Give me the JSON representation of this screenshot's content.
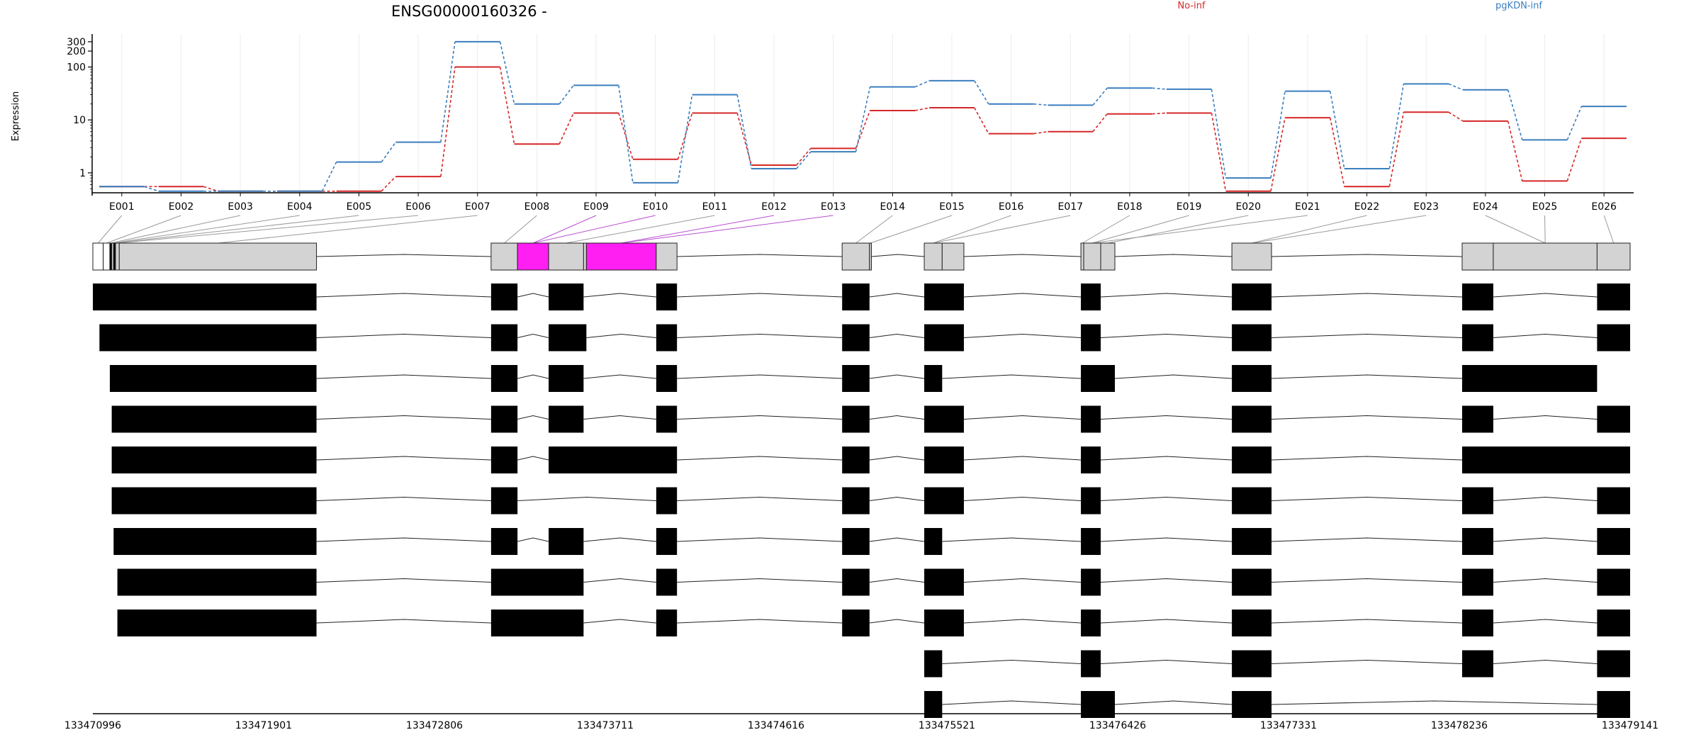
{
  "chart_data": {
    "type": "line",
    "title": "ENSG00000160326 -",
    "ylabel": "Expression",
    "yscale": "log",
    "y_ticks": [
      1,
      10,
      100,
      200,
      300
    ],
    "grid": true,
    "legend": [
      {
        "name": "No-inf",
        "color": "#d62728"
      },
      {
        "name": "pgKDN-inf",
        "color": "#3a7ebf"
      }
    ],
    "categories": [
      "E001",
      "E002",
      "E003",
      "E004",
      "E005",
      "E006",
      "E007",
      "E008",
      "E009",
      "E010",
      "E011",
      "E012",
      "E013",
      "E014",
      "E015",
      "E016",
      "E017",
      "E018",
      "E019",
      "E020",
      "E021",
      "E022",
      "E023",
      "E024",
      "E025",
      "E026"
    ],
    "series": [
      {
        "name": "No-inf",
        "color": "#d62728",
        "values": [
          0.55,
          0.55,
          0.45,
          0.45,
          0.45,
          0.85,
          100,
          3.5,
          13.5,
          1.8,
          13.5,
          1.4,
          2.9,
          15,
          17,
          5.5,
          6,
          13,
          13.5,
          0.45,
          11,
          0.55,
          14,
          9.5,
          0.7,
          4.5
        ]
      },
      {
        "name": "pgKDN-inf",
        "color": "#3a7ebf",
        "values": [
          0.55,
          0.45,
          0.45,
          0.45,
          1.6,
          3.8,
          300,
          20,
          45,
          0.65,
          30,
          1.2,
          2.5,
          42,
          55,
          20,
          19,
          40,
          38,
          0.8,
          35,
          1.2,
          48,
          37,
          4.2,
          18
        ]
      }
    ],
    "genomic_axis": {
      "ticks": [
        "133470996",
        "133471901",
        "133472806",
        "133473711",
        "133474616",
        "133475521",
        "133476426",
        "133477331",
        "133478236",
        "133479141"
      ],
      "start": 133470996,
      "end": 133479141
    },
    "exon_map": {
      "fill_color": "#d3d3d3",
      "highlight_color": "#ff1ff2",
      "exons": [
        {
          "id": "E001",
          "start": 133470996,
          "end": 133471051,
          "fill": "white"
        },
        {
          "id": "E002",
          "start": 133471051,
          "end": 133471086,
          "fill": "white"
        },
        {
          "id": "E003",
          "start": 133471086,
          "end": 133471096,
          "fill": "black"
        },
        {
          "id": "E004",
          "start": 133471096,
          "end": 133471106,
          "fill": "gray"
        },
        {
          "id": "E005",
          "start": 133471106,
          "end": 133471116,
          "fill": "black"
        },
        {
          "id": "E006",
          "start": 133471116,
          "end": 133471136,
          "fill": "gray"
        },
        {
          "id": "E007",
          "start": 133471136,
          "end": 133472181,
          "fill": "gray"
        },
        {
          "id": "E008",
          "start": 133473106,
          "end": 133473246,
          "fill": "gray"
        },
        {
          "id": "E009",
          "start": 133473246,
          "end": 133473411,
          "fill": "highlight"
        },
        {
          "id": "E010",
          "start": 133473411,
          "end": 133473596,
          "fill": "gray"
        },
        {
          "id": "E011",
          "start": 133473596,
          "end": 133473611,
          "fill": "gray"
        },
        {
          "id": "E012",
          "start": 133473611,
          "end": 133473981,
          "fill": "highlight"
        },
        {
          "id": "E013",
          "start": 133473981,
          "end": 133474091,
          "fill": "gray"
        },
        {
          "id": "E014",
          "start": 133474966,
          "end": 133475111,
          "fill": "gray"
        },
        {
          "id": "E015",
          "start": 133475111,
          "end": 133475121,
          "fill": "gray"
        },
        {
          "id": "E016",
          "start": 133475401,
          "end": 133475496,
          "fill": "gray"
        },
        {
          "id": "E017",
          "start": 133475496,
          "end": 133475611,
          "fill": "gray"
        },
        {
          "id": "E018",
          "start": 133476231,
          "end": 133476246,
          "fill": "gray"
        },
        {
          "id": "E019",
          "start": 133476246,
          "end": 133476336,
          "fill": "gray"
        },
        {
          "id": "E020",
          "start": 133476336,
          "end": 133476411,
          "fill": "gray"
        },
        {
          "id": "E021",
          "start": 133477031,
          "end": 133477241,
          "fill": "gray"
        },
        {
          "id": "E022",
          "start": 133478251,
          "end": 133478416,
          "fill": "gray"
        },
        {
          "id": "E023",
          "start": 133478416,
          "end": 133478966,
          "fill": "gray"
        },
        {
          "id": "E024",
          "start": 133478966,
          "end": 133479141,
          "fill": "gray"
        }
      ],
      "label_links": [
        [
          "E001",
          "E001"
        ],
        [
          "E002",
          "E002"
        ],
        [
          "E003",
          "E003"
        ],
        [
          "E004",
          "E004"
        ],
        [
          "E005",
          "E005"
        ],
        [
          "E006",
          "E006"
        ],
        [
          "E007",
          "E007"
        ],
        [
          "E008",
          "E008"
        ],
        [
          "E009",
          "E009"
        ],
        [
          "E010",
          "E009"
        ],
        [
          "E011",
          "E010"
        ],
        [
          "E012",
          "E012"
        ],
        [
          "E013",
          "E012"
        ],
        [
          "E014",
          "E014"
        ],
        [
          "E015",
          "E015"
        ],
        [
          "E016",
          "E016"
        ],
        [
          "E017",
          "E016"
        ],
        [
          "E018",
          "E018"
        ],
        [
          "E019",
          "E019"
        ],
        [
          "E020",
          "E020"
        ],
        [
          "E021",
          "E019"
        ],
        [
          "E022",
          "E021"
        ],
        [
          "E023",
          "E021"
        ],
        [
          "E024",
          "E023"
        ],
        [
          "E025",
          "E023"
        ],
        [
          "E026",
          "E024"
        ]
      ]
    },
    "transcripts": [
      [
        [
          133470996,
          133472181
        ],
        [
          133473106,
          133473246
        ],
        [
          133473411,
          133473596
        ],
        [
          133473981,
          133474091
        ],
        [
          133474966,
          133475111
        ],
        [
          133475401,
          133475611
        ],
        [
          133476231,
          133476336
        ],
        [
          133477031,
          133477241
        ],
        [
          133478251,
          133478416
        ],
        [
          133478966,
          133479141
        ]
      ],
      [
        [
          133471031,
          133472181
        ],
        [
          133473106,
          133473246
        ],
        [
          133473411,
          133473611
        ],
        [
          133473981,
          133474091
        ],
        [
          133474966,
          133475111
        ],
        [
          133475401,
          133475611
        ],
        [
          133476231,
          133476336
        ],
        [
          133477031,
          133477241
        ],
        [
          133478251,
          133478416
        ],
        [
          133478966,
          133479141
        ]
      ],
      [
        [
          133471086,
          133472181
        ],
        [
          133473106,
          133473246
        ],
        [
          133473411,
          133473596
        ],
        [
          133473981,
          133474091
        ],
        [
          133474966,
          133475111
        ],
        [
          133475401,
          133475496
        ],
        [
          133476231,
          133476411
        ],
        [
          133477031,
          133477241
        ],
        [
          133478251,
          133478966
        ]
      ],
      [
        [
          133471096,
          133472181
        ],
        [
          133473106,
          133473246
        ],
        [
          133473411,
          133473596
        ],
        [
          133473981,
          133474091
        ],
        [
          133474966,
          133475111
        ],
        [
          133475401,
          133475611
        ],
        [
          133476231,
          133476336
        ],
        [
          133477031,
          133477241
        ],
        [
          133478251,
          133478416
        ],
        [
          133478966,
          133479141
        ]
      ],
      [
        [
          133471096,
          133472181
        ],
        [
          133473106,
          133473246
        ],
        [
          133473411,
          133474091
        ],
        [
          133474966,
          133475111
        ],
        [
          133475401,
          133475611
        ],
        [
          133476231,
          133476336
        ],
        [
          133477031,
          133477241
        ],
        [
          133478251,
          133479141
        ]
      ],
      [
        [
          133471096,
          133472181
        ],
        [
          133473106,
          133473246
        ],
        [
          133473981,
          133474091
        ],
        [
          133474966,
          133475111
        ],
        [
          133475401,
          133475611
        ],
        [
          133476231,
          133476336
        ],
        [
          133477031,
          133477241
        ],
        [
          133478251,
          133478416
        ],
        [
          133478966,
          133479141
        ]
      ],
      [
        [
          133471106,
          133472181
        ],
        [
          133473106,
          133473246
        ],
        [
          133473411,
          133473596
        ],
        [
          133473981,
          133474091
        ],
        [
          133474966,
          133475111
        ],
        [
          133475401,
          133475496
        ],
        [
          133476231,
          133476336
        ],
        [
          133477031,
          133477241
        ],
        [
          133478251,
          133478416
        ],
        [
          133478966,
          133479141
        ]
      ],
      [
        [
          133471126,
          133472181
        ],
        [
          133473106,
          133473596
        ],
        [
          133473981,
          133474091
        ],
        [
          133474966,
          133475111
        ],
        [
          133475401,
          133475611
        ],
        [
          133476231,
          133476336
        ],
        [
          133477031,
          133477241
        ],
        [
          133478251,
          133478416
        ],
        [
          133478966,
          133479141
        ]
      ],
      [
        [
          133471126,
          133472181
        ],
        [
          133473106,
          133473596
        ],
        [
          133473981,
          133474091
        ],
        [
          133474966,
          133475111
        ],
        [
          133475401,
          133475611
        ],
        [
          133476231,
          133476336
        ],
        [
          133477031,
          133477241
        ],
        [
          133478251,
          133478416
        ],
        [
          133478966,
          133479141
        ]
      ],
      [
        [
          133475401,
          133475496
        ],
        [
          133476231,
          133476336
        ],
        [
          133477031,
          133477241
        ],
        [
          133478251,
          133478416
        ],
        [
          133478966,
          133479141
        ]
      ],
      [
        [
          133475401,
          133475496
        ],
        [
          133476231,
          133476411
        ],
        [
          133477031,
          133477241
        ],
        [
          133478966,
          133479141
        ]
      ]
    ]
  }
}
